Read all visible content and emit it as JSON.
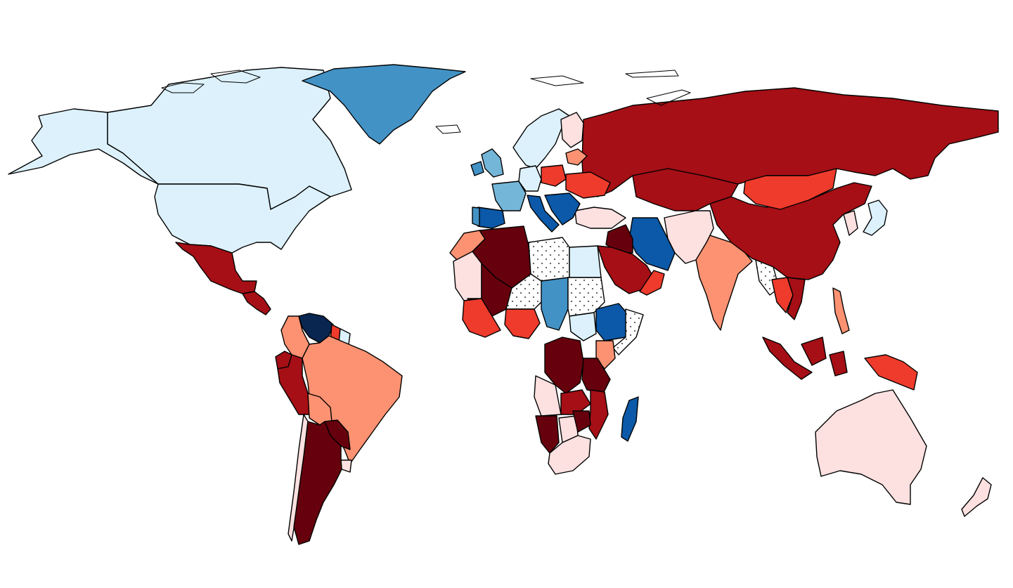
{
  "map": {
    "type": "choropleth",
    "projection": "equirectangular-world",
    "background": "#ffffff",
    "border_color": "#000000",
    "no_data_pattern": "dotted",
    "palette": {
      "dr5": "#67000d",
      "dr4": "#a50f15",
      "dr3": "#ef3b2c",
      "dr2": "#fc9272",
      "dr1": "#fde0e0",
      "bl1": "#dcf1fb",
      "bl2": "#74b6d8",
      "bl3": "#4292c6",
      "bl4": "#0b59a8",
      "bl5": "#08264f"
    },
    "regions": [
      {
        "id": "alaska",
        "cls": "bl1"
      },
      {
        "id": "canada",
        "cls": "bl1"
      },
      {
        "id": "usa",
        "cls": "bl1"
      },
      {
        "id": "greenland",
        "cls": "bl3"
      },
      {
        "id": "mexico",
        "cls": "dr4"
      },
      {
        "id": "central-america",
        "cls": "dr4"
      },
      {
        "id": "colombia",
        "cls": "dr2"
      },
      {
        "id": "venezuela",
        "cls": "bl5"
      },
      {
        "id": "guyana",
        "cls": "dr3"
      },
      {
        "id": "suriname",
        "cls": "bl1"
      },
      {
        "id": "ecuador",
        "cls": "dr4"
      },
      {
        "id": "peru",
        "cls": "dr4"
      },
      {
        "id": "brazil",
        "cls": "dr2"
      },
      {
        "id": "bolivia",
        "cls": "dr2"
      },
      {
        "id": "paraguay",
        "cls": "dr5"
      },
      {
        "id": "uruguay",
        "cls": "dr1"
      },
      {
        "id": "chile",
        "cls": "dr1"
      },
      {
        "id": "argentina",
        "cls": "dr5"
      },
      {
        "id": "russia",
        "cls": "dr4"
      },
      {
        "id": "kazakhstan",
        "cls": "dr4"
      },
      {
        "id": "china",
        "cls": "dr4"
      },
      {
        "id": "mongolia",
        "cls": "dr3"
      },
      {
        "id": "india",
        "cls": "dr2"
      },
      {
        "id": "iran",
        "cls": "bl4"
      },
      {
        "id": "saudi-arabia",
        "cls": "dr4"
      },
      {
        "id": "iraq",
        "cls": "dr5"
      },
      {
        "id": "yemen-oman",
        "cls": "dr3"
      },
      {
        "id": "afghanistan-pakistan",
        "cls": "dr1"
      },
      {
        "id": "turkey",
        "cls": "dr1"
      },
      {
        "id": "scandinavia",
        "cls": "bl1"
      },
      {
        "id": "finland",
        "cls": "dr1"
      },
      {
        "id": "uk",
        "cls": "bl2"
      },
      {
        "id": "ireland",
        "cls": "bl3"
      },
      {
        "id": "france",
        "cls": "bl2"
      },
      {
        "id": "spain",
        "cls": "bl4"
      },
      {
        "id": "portugal",
        "cls": "bl3"
      },
      {
        "id": "germany",
        "cls": "bl1"
      },
      {
        "id": "poland",
        "cls": "dr3"
      },
      {
        "id": "italy",
        "cls": "bl4"
      },
      {
        "id": "balkans",
        "cls": "bl4"
      },
      {
        "id": "ukraine",
        "cls": "dr3"
      },
      {
        "id": "baltics",
        "cls": "dr2"
      },
      {
        "id": "morocco",
        "cls": "dr2"
      },
      {
        "id": "algeria",
        "cls": "dr5"
      },
      {
        "id": "libya",
        "cls": "nd"
      },
      {
        "id": "egypt",
        "cls": "bl1"
      },
      {
        "id": "mauritania",
        "cls": "dr1"
      },
      {
        "id": "mali",
        "cls": "dr5"
      },
      {
        "id": "niger",
        "cls": "nd"
      },
      {
        "id": "chad",
        "cls": "bl3"
      },
      {
        "id": "sudan",
        "cls": "nd"
      },
      {
        "id": "ethiopia",
        "cls": "bl4"
      },
      {
        "id": "somalia",
        "cls": "nd"
      },
      {
        "id": "west-africa",
        "cls": "dr3"
      },
      {
        "id": "nigeria",
        "cls": "dr3"
      },
      {
        "id": "south-sudan",
        "cls": "bl1"
      },
      {
        "id": "kenya",
        "cls": "dr2"
      },
      {
        "id": "drc",
        "cls": "dr5"
      },
      {
        "id": "tanzania",
        "cls": "dr5"
      },
      {
        "id": "angola",
        "cls": "dr1"
      },
      {
        "id": "zambia",
        "cls": "dr4"
      },
      {
        "id": "mozambique",
        "cls": "dr4"
      },
      {
        "id": "namibia",
        "cls": "dr5"
      },
      {
        "id": "botswana",
        "cls": "dr1"
      },
      {
        "id": "zimbabwe",
        "cls": "dr5"
      },
      {
        "id": "south-africa",
        "cls": "dr1"
      },
      {
        "id": "madagascar",
        "cls": "bl4"
      },
      {
        "id": "southeast-asia",
        "cls": "nd"
      },
      {
        "id": "thailand",
        "cls": "dr3"
      },
      {
        "id": "vietnam-laos",
        "cls": "dr4"
      },
      {
        "id": "philippines",
        "cls": "dr2"
      },
      {
        "id": "japan",
        "cls": "bl1"
      },
      {
        "id": "korea",
        "cls": "dr1"
      },
      {
        "id": "indonesia",
        "cls": "dr4"
      },
      {
        "id": "papua-new-guinea",
        "cls": "dr3"
      },
      {
        "id": "australia",
        "cls": "dr1"
      },
      {
        "id": "new-zealand",
        "cls": "dr1"
      }
    ]
  }
}
